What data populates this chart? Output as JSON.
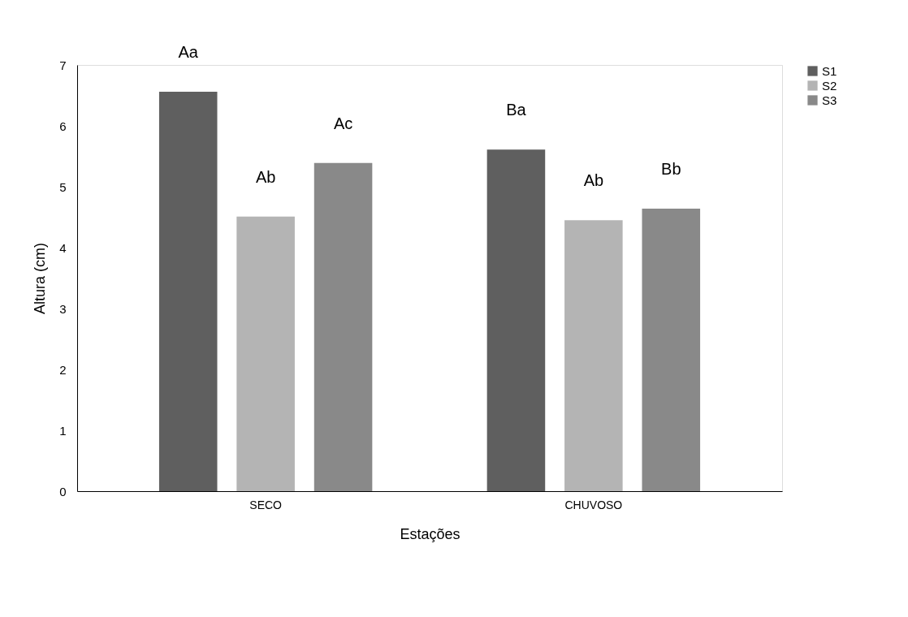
{
  "chart_data": {
    "type": "bar",
    "xlabel": "Estações",
    "ylabel": "Altura (cm)",
    "categories": [
      "SECO",
      "CHUVOSO"
    ],
    "series": [
      {
        "name": "S1",
        "color": "#5f5f5f",
        "values": [
          6.56,
          5.61
        ]
      },
      {
        "name": "S2",
        "color": "#b4b4b4",
        "values": [
          4.51,
          4.45
        ]
      },
      {
        "name": "S3",
        "color": "#898989",
        "values": [
          5.39,
          4.64
        ]
      }
    ],
    "ylim": [
      0,
      7
    ],
    "yticks": [
      0,
      1,
      2,
      3,
      4,
      5,
      6,
      7
    ],
    "grid": false,
    "legend": "right",
    "annotations": [
      "Aa",
      "Ab",
      "Ac",
      "Ba",
      "Ab",
      "Bb"
    ]
  }
}
